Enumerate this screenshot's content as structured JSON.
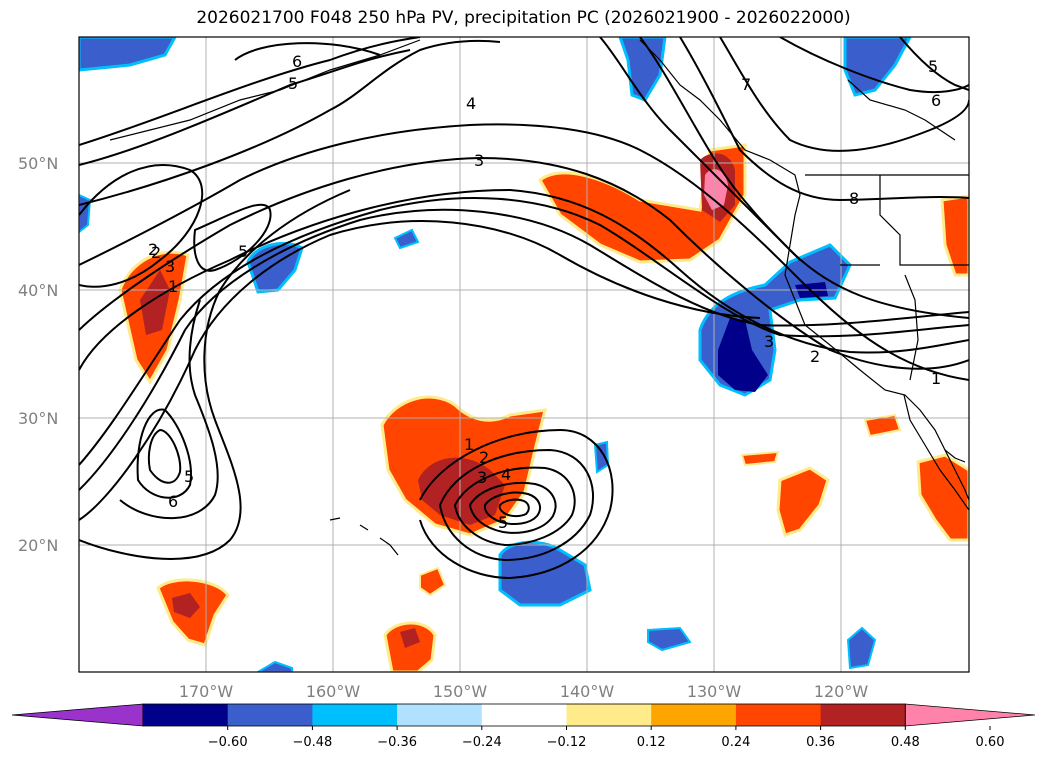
{
  "title": "2026021700 F048 250 hPa PV, precipitation PC (2026021900 - 2026022000)",
  "lat_labels": [
    "50°N",
    "40°N",
    "30°N",
    "20°N"
  ],
  "lon_labels": [
    "170°W",
    "160°W",
    "150°W",
    "140°W",
    "130°W",
    "120°W"
  ],
  "colorbar": {
    "ticks": [
      "−0.60",
      "−0.48",
      "−0.36",
      "−0.24",
      "−0.12",
      "0.12",
      "0.24",
      "0.36",
      "0.48",
      "0.60"
    ],
    "colors": [
      "#9933cc",
      "#00008b",
      "#3a5fcd",
      "#00bfff",
      "#b0e2ff",
      "#ffffff",
      "#ffeb8a",
      "#ffa500",
      "#ff4500",
      "#b22222",
      "#ff82ab"
    ],
    "extend": "both"
  },
  "contour_labels": [
    "6",
    "5",
    "4",
    "3",
    "2",
    "1",
    "8",
    "7",
    "6",
    "5",
    "5",
    "3",
    "2",
    "1",
    "2",
    "3",
    "4",
    "5",
    "1",
    "2",
    "3",
    "5",
    "6"
  ],
  "map": {
    "projection": "plate carree",
    "lon_range": [
      -180,
      -110
    ],
    "lat_range": [
      10,
      60
    ],
    "grid": true,
    "field_contoured": "250 hPa PV (black contours)",
    "field_shaded": "precipitation PC"
  }
}
